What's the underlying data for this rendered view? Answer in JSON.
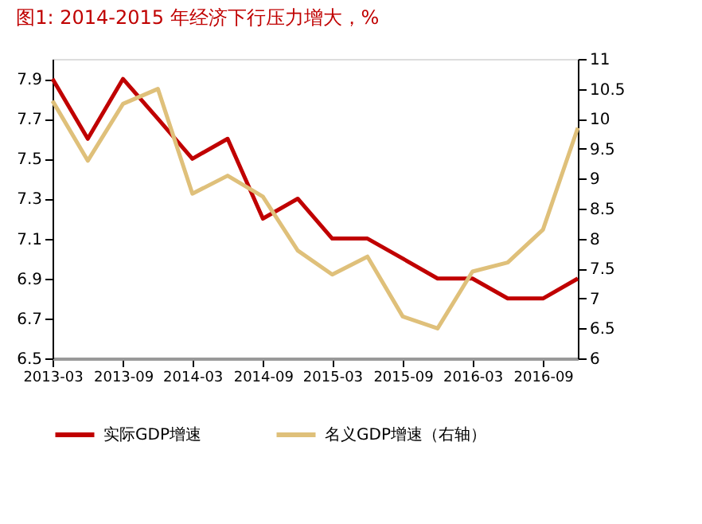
{
  "chart_data": {
    "type": "line",
    "title": "图1:   2014-2015 年经济下行压力增大，%",
    "x": [
      "2013-03",
      "2013-06",
      "2013-09",
      "2013-12",
      "2014-03",
      "2014-06",
      "2014-09",
      "2014-12",
      "2015-03",
      "2015-06",
      "2015-09",
      "2015-12",
      "2016-03",
      "2016-06",
      "2016-09",
      "2016-12"
    ],
    "series": [
      {
        "name": "实际GDP增速",
        "color": "#c00000",
        "values": [
          7.9,
          7.6,
          7.9,
          7.7,
          7.5,
          7.6,
          7.2,
          7.3,
          7.1,
          7.1,
          7.0,
          6.9,
          6.9,
          6.8,
          6.8,
          6.9
        ]
      },
      {
        "name": "名义GDP增速（右轴）",
        "color": "#dfc07a",
        "axis": "y2",
        "values": [
          10.3,
          9.3,
          10.25,
          10.5,
          8.75,
          9.05,
          8.7,
          7.8,
          7.4,
          7.7,
          6.7,
          6.5,
          7.45,
          7.6,
          8.15,
          9.85
        ]
      }
    ],
    "xlim": [
      "2013-03",
      "2016-12"
    ],
    "xticks": [
      "2013-03",
      "2013-09",
      "2014-03",
      "2014-09",
      "2015-03",
      "2015-09",
      "2016-03",
      "2016-09"
    ],
    "ylim": [
      6.5,
      8.0
    ],
    "yticks": [
      6.5,
      6.7,
      6.9,
      7.1,
      7.3,
      7.5,
      7.7,
      7.9
    ],
    "y2lim": [
      6,
      11
    ],
    "y2ticks": [
      6,
      6.5,
      7,
      7.5,
      8,
      8.5,
      9,
      9.5,
      10,
      10.5,
      11
    ],
    "grid": false,
    "legend": "bottom",
    "line_style": "solid"
  }
}
